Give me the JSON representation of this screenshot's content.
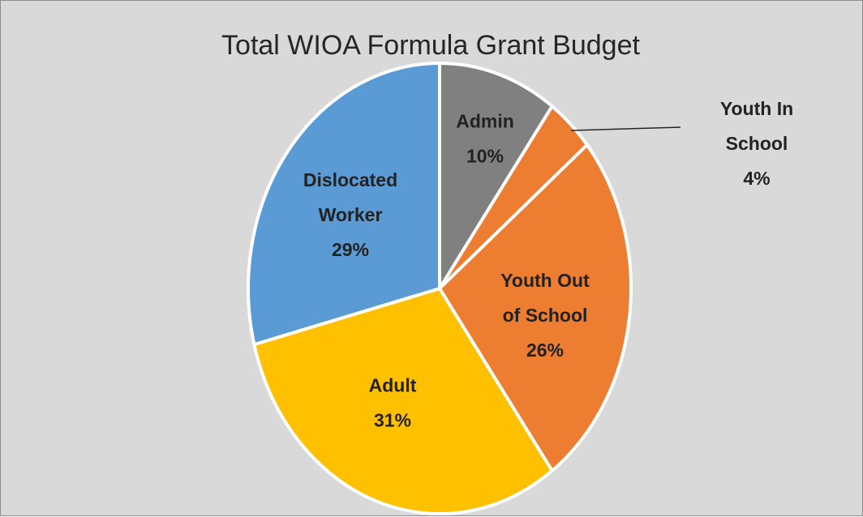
{
  "chart_data": {
    "type": "pie",
    "title": "Total WIOA Formula Grant Budget",
    "colors": {
      "background": "#d9d9d9",
      "border": "#8c8c8c",
      "title_text": "#262626",
      "label_text": "#222222",
      "slice_edge": "#ffffff"
    },
    "slices": [
      {
        "category": "Admin",
        "label_lines": [
          "Admin",
          "10%"
        ],
        "value": 10,
        "color": "#808080"
      },
      {
        "category": "Youth In School",
        "label_lines": [
          "Youth In",
          "School",
          "4%"
        ],
        "value": 4,
        "color": "#ed7d31"
      },
      {
        "category": "Youth Out of School",
        "label_lines": [
          "Youth Out",
          "of School",
          "26%"
        ],
        "value": 26,
        "color": "#ed7d31"
      },
      {
        "category": "Adult",
        "label_lines": [
          "Adult",
          "31%"
        ],
        "value": 31,
        "color": "#ffc000"
      },
      {
        "category": "Dislocated Worker",
        "label_lines": [
          "Dislocated",
          "Worker",
          "29%"
        ],
        "value": 29,
        "color": "#5b9bd5"
      }
    ]
  }
}
